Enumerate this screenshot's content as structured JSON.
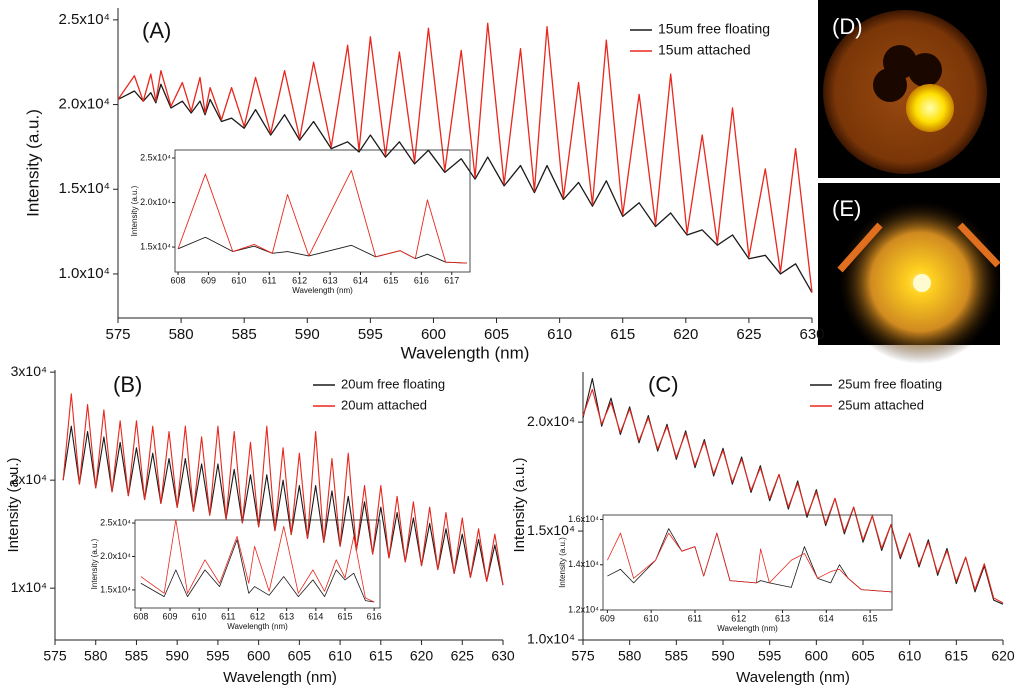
{
  "chart_data": [
    {
      "type": "line",
      "label": "(A)",
      "x_label": "Wavelength (nm)",
      "y_label": "Intensity (a.u.)",
      "x": [
        575,
        576.3,
        577,
        577.6,
        578.0,
        578.4,
        579.2,
        580.1,
        580.8,
        581.5,
        581.9,
        582.3,
        583.2,
        584.0,
        585.0,
        585.9,
        587.1,
        588.2,
        589.4,
        590.5,
        591.9,
        593.2,
        594.1,
        595.0,
        596.2,
        597.3,
        598.5,
        599.6,
        600.9,
        602.2,
        603.3,
        604.3,
        605.6,
        606.9,
        608.0,
        609.0,
        610.3,
        611.5,
        612.6,
        613.7,
        615.0,
        616.3,
        617.6,
        618.8,
        620.1,
        621.3,
        622.5,
        623.7,
        625.0,
        626.3,
        627.5,
        628.7,
        630
      ],
      "series": [
        {
          "name": "15um free floating",
          "color": "#1a1a1a",
          "values": [
            20300,
            20800,
            20200,
            20700,
            20100,
            21200,
            19800,
            20200,
            19500,
            20200,
            19400,
            20300,
            19000,
            19200,
            18600,
            19700,
            18200,
            19400,
            17900,
            19000,
            17400,
            17800,
            17200,
            18200,
            16900,
            17800,
            16500,
            17300,
            16000,
            16800,
            15600,
            16900,
            15200,
            16400,
            14800,
            16400,
            14400,
            15400,
            14000,
            15500,
            13400,
            14200,
            12800,
            13600,
            12300,
            12600,
            11700,
            12300,
            10900,
            11100,
            10000,
            10600,
            8900
          ]
        },
        {
          "name": "15um attached",
          "color": "#e8281e",
          "values": [
            20300,
            21700,
            20200,
            21800,
            20200,
            22000,
            19900,
            21300,
            19600,
            21600,
            19500,
            21000,
            19100,
            21000,
            18700,
            21600,
            18300,
            22000,
            18000,
            22500,
            17500,
            23500,
            17300,
            24000,
            17000,
            23100,
            16600,
            24500,
            16100,
            23200,
            15700,
            24800,
            15300,
            23300,
            14900,
            24600,
            14500,
            21300,
            14100,
            23800,
            13500,
            20600,
            12900,
            21800,
            12400,
            18200,
            11800,
            19800,
            11000,
            16200,
            10100,
            17400,
            8900
          ]
        }
      ],
      "xlim": [
        575,
        630
      ],
      "ylim": [
        7400,
        25700
      ],
      "xticks": [
        575,
        580,
        585,
        590,
        595,
        600,
        605,
        610,
        615,
        620,
        625,
        630
      ],
      "yticks": [
        {
          "value": 10000,
          "label": "1.0x10⁴"
        },
        {
          "value": 15000,
          "label": "1.5x10⁴"
        },
        {
          "value": 20000,
          "label": "2.0x10⁴"
        },
        {
          "value": 25000,
          "label": "2.5x10⁴"
        }
      ]
    },
    {
      "type": "line",
      "x_label": "Wavelength (nm)",
      "y_label": "Intensity (a.u.)",
      "x": [
        608,
        608.9,
        609.8,
        610.5,
        611.1,
        611.6,
        612.3,
        613.7,
        614.5,
        615.3,
        615.8,
        616.2,
        616.8,
        617.5
      ],
      "series": [
        {
          "color": "#1a1a1a",
          "values": [
            14800,
            16100,
            14500,
            15100,
            14300,
            14500,
            14000,
            15200,
            13900,
            14600,
            13700,
            14200,
            13300,
            13200
          ]
        },
        {
          "color": "#e8281e",
          "values": [
            14800,
            23200,
            14500,
            15300,
            14300,
            20900,
            14000,
            23600,
            13900,
            14600,
            13700,
            20300,
            13300,
            13200
          ]
        }
      ],
      "xlim": [
        607.9,
        617.6
      ],
      "ylim": [
        12200,
        25900
      ],
      "xticks": [
        608,
        609,
        610,
        611,
        612,
        613,
        614,
        615,
        616,
        617
      ],
      "yticks": [
        {
          "value": 15000,
          "label": "1.5x10⁴"
        },
        {
          "value": 20000,
          "label": "2.0x10⁴"
        },
        {
          "value": 25000,
          "label": "2.5x10⁴"
        }
      ]
    },
    {
      "type": "line",
      "label": "(B)",
      "x_label": "Wavelength (nm)",
      "y_label": "Intensity (a.u.)",
      "x": [
        576,
        577,
        578,
        579,
        580,
        581,
        582,
        583,
        584,
        585,
        586,
        587,
        588,
        589,
        590,
        591,
        592,
        593,
        594,
        595,
        596,
        597,
        598,
        599,
        600,
        601,
        602,
        603,
        604,
        605,
        606,
        607,
        608,
        609,
        610,
        611,
        612,
        613,
        614,
        615,
        616,
        617,
        618,
        619,
        620,
        621,
        622,
        623,
        624,
        625,
        626,
        627,
        628,
        629,
        630
      ],
      "series": [
        {
          "name": "20um free floating",
          "color": "#1a1a1a",
          "values": [
            20000,
            25000,
            19640,
            24500,
            19280,
            24000,
            18920,
            23500,
            18560,
            23000,
            18200,
            22500,
            17840,
            22000,
            17480,
            22000,
            17120,
            21500,
            16760,
            21500,
            16400,
            21000,
            16040,
            20500,
            15680,
            20500,
            15320,
            20000,
            14960,
            19500,
            14600,
            19500,
            14240,
            19000,
            13880,
            18500,
            13520,
            18000,
            13160,
            17500,
            12800,
            17000,
            12440,
            16500,
            12080,
            16000,
            11720,
            15500,
            11360,
            15000,
            11000,
            14500,
            10640,
            14000,
            10280
          ]
        },
        {
          "name": "20um attached",
          "color": "#e8281e",
          "values": [
            20000,
            28000,
            19640,
            27000,
            19280,
            26500,
            18920,
            25500,
            18560,
            25500,
            18200,
            25000,
            17840,
            24500,
            17480,
            25000,
            17120,
            24000,
            16760,
            25000,
            16400,
            24500,
            16040,
            23500,
            15680,
            25000,
            15320,
            23000,
            14960,
            22500,
            14600,
            24500,
            14240,
            22000,
            13880,
            22500,
            13520,
            19500,
            13160,
            19500,
            12800,
            18500,
            12440,
            18000,
            12080,
            17500,
            11720,
            17000,
            11360,
            16500,
            11000,
            15500,
            10640,
            15000,
            10280
          ]
        }
      ],
      "xlim": [
        575,
        630
      ],
      "ylim": [
        5200,
        30200
      ],
      "xticks": [
        575,
        580,
        585,
        590,
        595,
        600,
        605,
        610,
        615,
        620,
        625,
        630
      ],
      "yticks": [
        {
          "value": 10000,
          "label": "1x10⁴"
        },
        {
          "value": 20000,
          "label": "2x10⁴"
        },
        {
          "value": 30000,
          "label": "3x10⁴"
        }
      ]
    },
    {
      "type": "line",
      "x_label": "Wavelength (nm)",
      "y_label": "Intensity (a.u.)",
      "x": [
        608,
        608.8,
        609.2,
        609.6,
        610.2,
        610.7,
        611.3,
        611.7,
        611.9,
        612.4,
        612.9,
        613.4,
        613.9,
        614.3,
        614.7,
        615,
        615.3,
        615.7,
        616
      ],
      "series": [
        {
          "color": "#1a1a1a",
          "values": [
            16000,
            14000,
            18000,
            14000,
            18000,
            15500,
            22500,
            14500,
            15500,
            14200,
            17000,
            14000,
            16500,
            14000,
            18000,
            16500,
            17500,
            13400,
            13200
          ]
        },
        {
          "color": "#e8281e",
          "values": [
            17000,
            14500,
            25500,
            14500,
            19500,
            16000,
            23000,
            16000,
            21500,
            14800,
            24500,
            14500,
            18000,
            14800,
            19500,
            16800,
            23000,
            13800,
            13200
          ]
        }
      ],
      "xlim": [
        607.8,
        616.2
      ],
      "ylim": [
        12300,
        25450
      ],
      "xticks": [
        608,
        609,
        610,
        611,
        612,
        613,
        614,
        615,
        616
      ],
      "yticks": [
        {
          "value": 15000,
          "label": "1.5x10⁴"
        },
        {
          "value": 20000,
          "label": "2.0x10⁴"
        },
        {
          "value": 25000,
          "label": "2.5x10⁴"
        }
      ]
    },
    {
      "type": "line",
      "label": "(C)",
      "x_label": "Wavelength (nm)",
      "y_label": "Intensity (a.u.)",
      "x": [
        575,
        576,
        577,
        578,
        579,
        580,
        581,
        582,
        583,
        584,
        585,
        586,
        587,
        588,
        589,
        590,
        591,
        592,
        593,
        594,
        595,
        596,
        597,
        598,
        599,
        600,
        601,
        602,
        603,
        604,
        605,
        606,
        607,
        608,
        609,
        610,
        611,
        612,
        613,
        614,
        615,
        616,
        617,
        618,
        619,
        620
      ],
      "series": [
        {
          "name": "25um free floating",
          "color": "#1a1a1a",
          "values": [
            20190,
            22000,
            19810,
            21100,
            19430,
            20700,
            19050,
            20300,
            18670,
            19900,
            18290,
            19600,
            17910,
            19200,
            17530,
            18800,
            17150,
            18400,
            16770,
            18000,
            16390,
            17600,
            16010,
            17300,
            15630,
            16900,
            15250,
            16500,
            14870,
            16100,
            14490,
            15700,
            14110,
            15300,
            13730,
            14900,
            13350,
            14600,
            12970,
            14200,
            12590,
            13800,
            12210,
            13400,
            11830,
            11640
          ]
        },
        {
          "name": "25um attached",
          "color": "#e8281e",
          "values": [
            20290,
            21500,
            19910,
            20900,
            19530,
            20600,
            19150,
            20200,
            18770,
            19800,
            18390,
            19500,
            18010,
            19100,
            17630,
            18700,
            17250,
            18300,
            16870,
            17900,
            16490,
            17600,
            16110,
            17200,
            15730,
            16800,
            15350,
            16500,
            14970,
            16100,
            14590,
            15700,
            14210,
            15300,
            13830,
            14900,
            13450,
            14500,
            13070,
            14100,
            12690,
            13800,
            12310,
            13500,
            11930,
            11700
          ]
        }
      ],
      "xlim": [
        575,
        620
      ],
      "ylim": [
        10000,
        22300
      ],
      "xticks": [
        575,
        580,
        585,
        590,
        595,
        600,
        605,
        610,
        615,
        620
      ],
      "yticks": [
        {
          "value": 10000,
          "label": "1.0x10⁴"
        },
        {
          "value": 15000,
          "label": "1.5x10⁴"
        },
        {
          "value": 20000,
          "label": "2.0x10⁴"
        }
      ]
    },
    {
      "type": "line",
      "x_label": "Wavelength (nm)",
      "y_label": "Intensity (a.u.)",
      "x": [
        609,
        609.3,
        609.6,
        610.1,
        610.4,
        610.7,
        611,
        611.2,
        611.5,
        611.8,
        612.4,
        612.5,
        612.7,
        613.2,
        613.5,
        613.8,
        614.1,
        614.3,
        614.5,
        614.8,
        615.5
      ],
      "series": [
        {
          "color": "#1a1a1a",
          "values": [
            13500,
            13800,
            13200,
            14200,
            15600,
            14600,
            14800,
            13500,
            15400,
            13300,
            13200,
            13300,
            13200,
            13000,
            14800,
            13400,
            13200,
            14000,
            13400,
            12900,
            12800
          ]
        },
        {
          "color": "#e8281e",
          "values": [
            14200,
            15400,
            13400,
            14200,
            15400,
            14600,
            14800,
            13500,
            15400,
            13300,
            13200,
            14700,
            13200,
            14200,
            14500,
            13400,
            13700,
            13800,
            13400,
            12900,
            12800
          ]
        }
      ],
      "xlim": [
        608.9,
        615.5
      ],
      "ylim": [
        12000,
        16200
      ],
      "xticks": [
        609,
        610,
        611,
        612,
        613,
        614,
        615
      ],
      "yticks": [
        {
          "value": 12000,
          "label": "1.2x10⁴"
        },
        {
          "value": 14000,
          "label": "1.4x10⁴"
        },
        {
          "value": 16000,
          "label": "1.6x10⁴"
        }
      ]
    }
  ],
  "images": [
    {
      "label": "(D)"
    },
    {
      "label": "(E)"
    }
  ]
}
